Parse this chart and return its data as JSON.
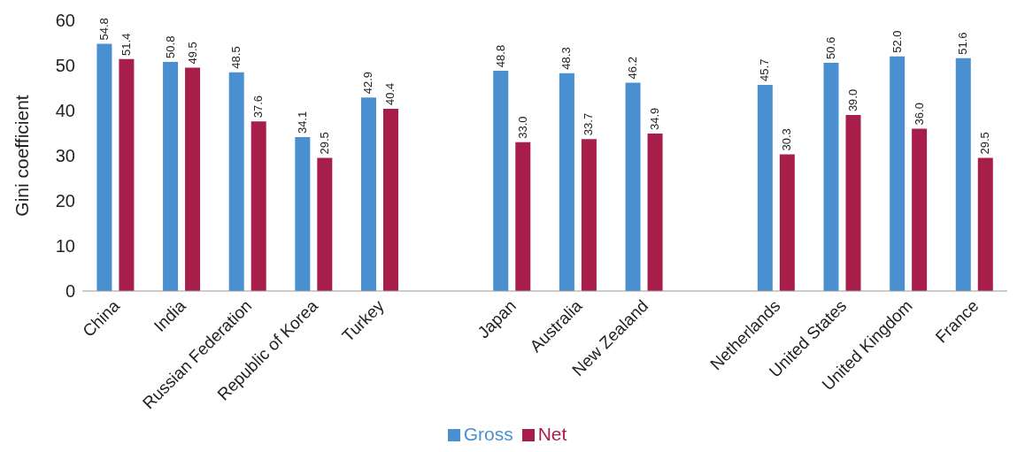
{
  "chart_data": {
    "type": "bar",
    "ylabel": "Gini coefficient",
    "categories": [
      "China",
      "India",
      "Russian Federation",
      "Republic of Korea",
      "Turkey",
      null,
      "Japan",
      "Australia",
      "New Zealand",
      null,
      "Netherlands",
      "United States",
      "United Kingdom",
      "France"
    ],
    "series": [
      {
        "name": "Gross",
        "color": "#4a8fd0",
        "values": [
          54.8,
          50.8,
          48.5,
          34.1,
          42.9,
          null,
          48.8,
          48.3,
          46.2,
          null,
          45.7,
          50.6,
          52.0,
          51.6
        ],
        "value_labels": [
          "54.8",
          "50.8",
          "48.5",
          "34.1",
          "42.9",
          null,
          "48.8",
          "48.3",
          "46.2",
          null,
          "45.7",
          "50.6",
          "52.0",
          "51.6"
        ]
      },
      {
        "name": "Net",
        "color": "#a81e4a",
        "values": [
          51.4,
          49.5,
          37.6,
          29.5,
          40.4,
          null,
          33.0,
          33.7,
          34.9,
          null,
          30.3,
          39.0,
          36.0,
          29.5
        ],
        "value_labels": [
          "51.4",
          "49.5",
          "37.6",
          "29.5",
          "40.4",
          null,
          "33.0",
          "33.7",
          "34.9",
          null,
          "30.3",
          "39.0",
          "36.0",
          "29.5"
        ]
      }
    ],
    "ylim": [
      0,
      60
    ],
    "yticks": [
      0,
      10,
      20,
      30,
      40,
      50,
      60
    ],
    "grid": false,
    "legend": "bottom"
  }
}
